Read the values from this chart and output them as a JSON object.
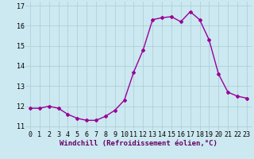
{
  "x": [
    0,
    1,
    2,
    3,
    4,
    5,
    6,
    7,
    8,
    9,
    10,
    11,
    12,
    13,
    14,
    15,
    16,
    17,
    18,
    19,
    20,
    21,
    22,
    23
  ],
  "y": [
    11.9,
    11.9,
    12.0,
    11.9,
    11.6,
    11.4,
    11.3,
    11.3,
    11.5,
    11.8,
    12.3,
    13.7,
    14.8,
    16.3,
    16.4,
    16.45,
    16.2,
    16.7,
    16.3,
    15.3,
    13.6,
    12.7,
    12.5,
    12.4
  ],
  "line_color": "#990099",
  "marker": "D",
  "marker_size": 2.0,
  "bg_color": "#cce8f0",
  "grid_color": "#aaccd4",
  "xlabel": "Windchill (Refroidissement éolien,°C)",
  "xlabel_fontsize": 6.5,
  "tick_fontsize": 6.0,
  "ylim": [
    10.8,
    17.2
  ],
  "yticks": [
    11,
    12,
    13,
    14,
    15,
    16,
    17
  ],
  "xticks": [
    0,
    1,
    2,
    3,
    4,
    5,
    6,
    7,
    8,
    9,
    10,
    11,
    12,
    13,
    14,
    15,
    16,
    17,
    18,
    19,
    20,
    21,
    22,
    23
  ],
  "line_width": 1.0
}
